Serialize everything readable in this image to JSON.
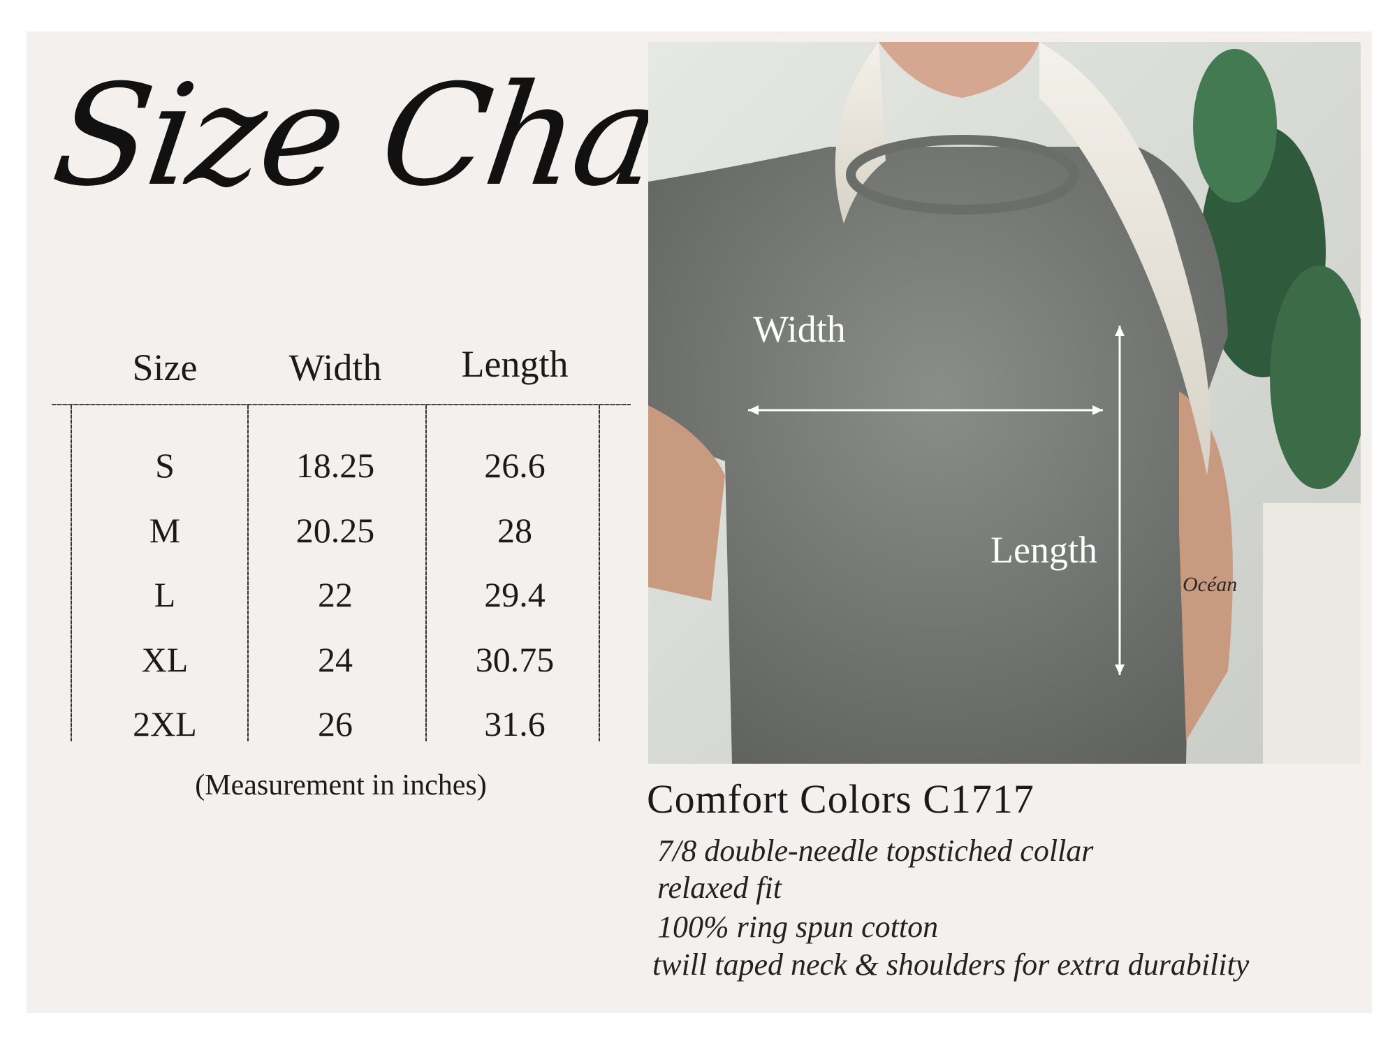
{
  "title": "Size Chart",
  "table": {
    "headers": [
      "Size",
      "Width",
      "Length"
    ],
    "rows": [
      [
        "S",
        "18.25",
        "26.6"
      ],
      [
        "M",
        "20.25",
        "28"
      ],
      [
        "L",
        "22",
        "29.4"
      ],
      [
        "XL",
        "24",
        "30.75"
      ],
      [
        "2XL",
        "26",
        "31.6"
      ]
    ],
    "note": "(Measurement in inches)"
  },
  "photo": {
    "width_label": "Width",
    "length_label": "Length",
    "tattoo_text": "Océan"
  },
  "product": {
    "name": "Comfort Colors C1717",
    "features": [
      "7/8 double-needle topstiched collar",
      "relaxed fit",
      "100% ring spun cotton",
      "twill taped neck & shoulders for extra durability"
    ]
  },
  "colors": {
    "panel": "#f4f0ee",
    "shirt": "#7d807b",
    "text": "#1a1a1a"
  }
}
